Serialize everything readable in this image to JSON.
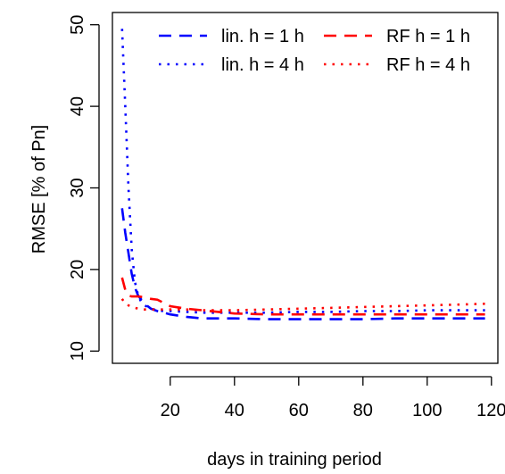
{
  "chart_data": {
    "type": "line",
    "title": "",
    "xlabel": "days in training period",
    "ylabel": "RMSE [% of Pn]",
    "xlim": [
      2,
      122
    ],
    "ylim": [
      8.5,
      51.5
    ],
    "xticks": [
      20,
      40,
      60,
      80,
      100,
      120
    ],
    "yticks": [
      10,
      20,
      30,
      40,
      50
    ],
    "grid": false,
    "legend_position": "top-right",
    "series": [
      {
        "name": "lin. h = 1 h",
        "color": "#0000ff",
        "linestyle": "dashed",
        "x": [
          5,
          6,
          7,
          8,
          9,
          10,
          12,
          14,
          16,
          18,
          20,
          25,
          30,
          35,
          40,
          50,
          60,
          70,
          80,
          90,
          100,
          110,
          118
        ],
        "y": [
          27.5,
          24.5,
          22,
          19.5,
          17.8,
          16.8,
          15.8,
          15.2,
          14.9,
          14.7,
          14.5,
          14.2,
          14.0,
          14.0,
          14.0,
          13.9,
          13.9,
          13.9,
          13.9,
          14.0,
          14.0,
          14.0,
          14.0
        ]
      },
      {
        "name": "lin. h = 4 h",
        "color": "#0000ff",
        "linestyle": "dotted",
        "x": [
          5,
          6,
          7,
          8,
          9,
          10,
          11,
          12,
          14,
          16,
          18,
          20,
          25,
          30,
          35,
          40,
          50,
          60,
          70,
          80,
          90,
          100,
          110,
          118
        ],
        "y": [
          49.5,
          40,
          30,
          22.5,
          18.5,
          16.8,
          16.0,
          15.6,
          15.2,
          15.0,
          14.9,
          14.9,
          14.8,
          14.7,
          14.7,
          14.7,
          14.7,
          14.8,
          14.8,
          14.9,
          14.9,
          15.0,
          15.0,
          15.0
        ]
      },
      {
        "name": "RF h = 1 h",
        "color": "#ff0000",
        "linestyle": "dashed",
        "x": [
          5,
          6,
          7,
          8,
          10,
          12,
          14,
          16,
          18,
          20,
          25,
          30,
          35,
          40,
          50,
          60,
          70,
          80,
          90,
          100,
          110,
          118
        ],
        "y": [
          19.0,
          17.5,
          16.8,
          16.7,
          16.7,
          16.6,
          16.4,
          16.3,
          15.9,
          15.5,
          15.2,
          15.0,
          14.8,
          14.6,
          14.5,
          14.5,
          14.5,
          14.5,
          14.5,
          14.5,
          14.5,
          14.5
        ]
      },
      {
        "name": "RF h = 4 h",
        "color": "#ff0000",
        "linestyle": "dotted",
        "x": [
          5,
          6,
          8,
          10,
          12,
          14,
          16,
          20,
          25,
          30,
          40,
          50,
          60,
          70,
          80,
          90,
          100,
          110,
          118
        ],
        "y": [
          16.4,
          15.8,
          15.4,
          15.2,
          15.1,
          15.1,
          15.1,
          15.1,
          15.1,
          15.0,
          15.0,
          15.1,
          15.2,
          15.3,
          15.4,
          15.5,
          15.6,
          15.7,
          15.8
        ]
      }
    ]
  }
}
